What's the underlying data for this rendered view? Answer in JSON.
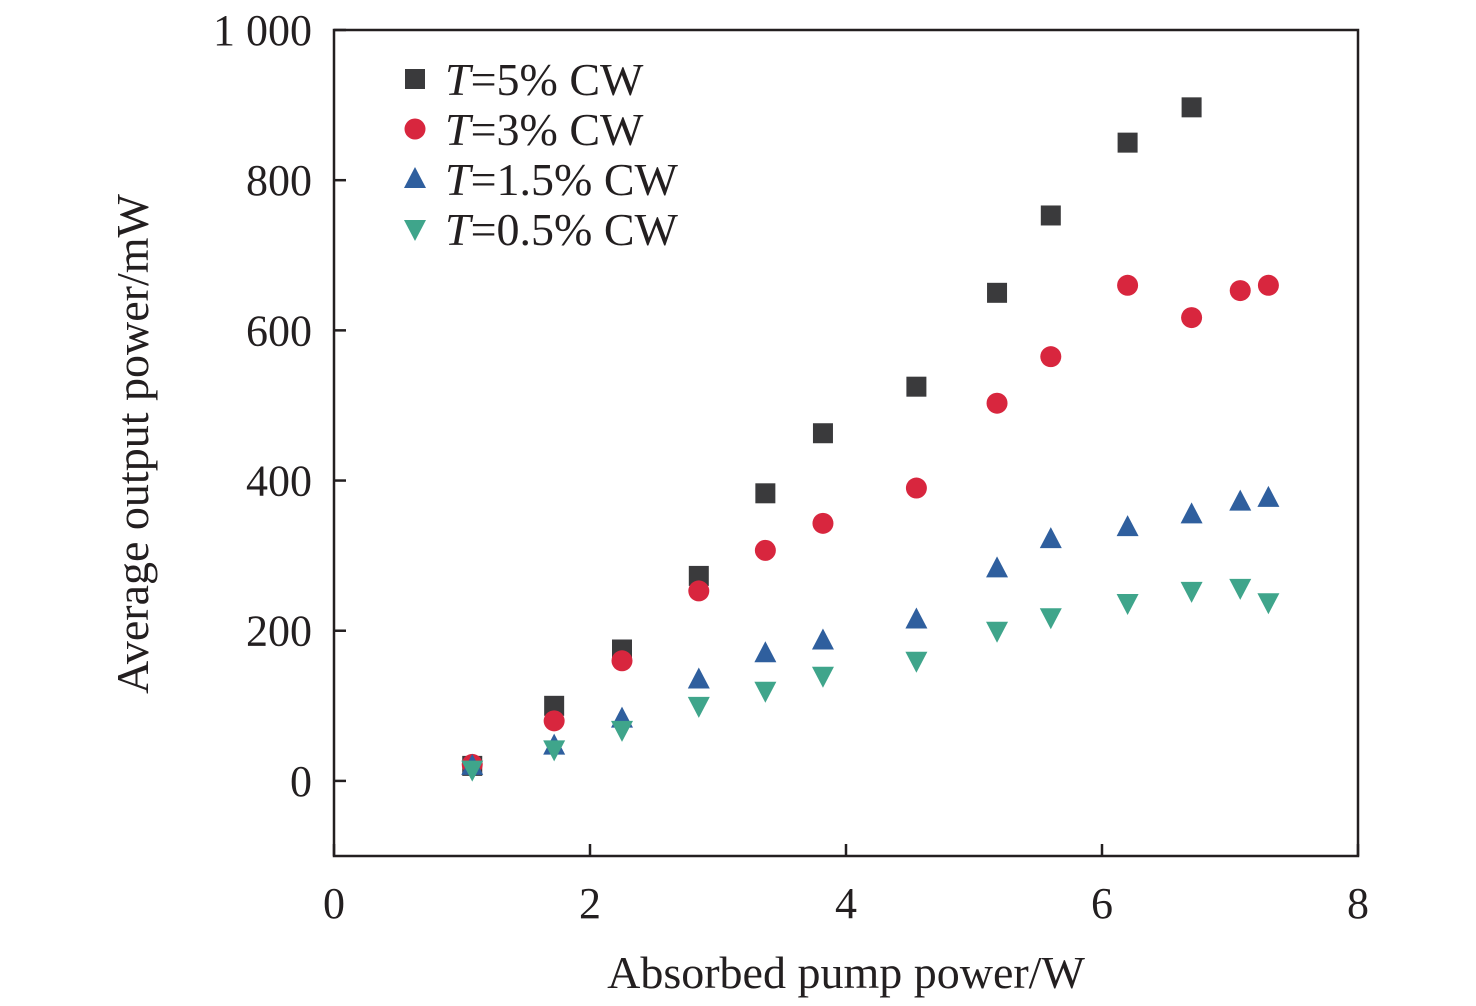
{
  "chart_data": {
    "type": "scatter",
    "title": "",
    "xlabel": "Absorbed pump power/W",
    "ylabel": "Average output power/mW",
    "xlim": [
      0,
      8
    ],
    "ylim": [
      -100,
      1000
    ],
    "x_ticks": [
      0,
      2,
      4,
      6,
      8
    ],
    "x_tick_labels": [
      "0",
      "2",
      "4",
      "6",
      "8"
    ],
    "y_ticks": [
      0,
      200,
      400,
      600,
      800,
      1000
    ],
    "y_tick_labels": [
      "0",
      "200",
      "400",
      "600",
      "800",
      "1 000"
    ],
    "grid": false,
    "legend_position": "top-left",
    "series": [
      {
        "name": "T=5% CW",
        "name_italic_part": "T",
        "name_rest": "=5% CW",
        "marker": "square",
        "color": "#3a3a3c",
        "x": [
          1.08,
          1.72,
          2.25,
          2.85,
          3.37,
          3.82,
          4.55,
          5.18,
          5.6,
          6.2,
          6.7
        ],
        "y": [
          20,
          100,
          175,
          273,
          383,
          463,
          525,
          650,
          753,
          850,
          897
        ]
      },
      {
        "name": "T=3% CW",
        "name_italic_part": "T",
        "name_rest": "=3% CW",
        "marker": "circle",
        "color": "#d8263e",
        "x": [
          1.08,
          1.72,
          2.25,
          2.85,
          3.37,
          3.82,
          4.55,
          5.18,
          5.6,
          6.2,
          6.7,
          7.08,
          7.3
        ],
        "y": [
          22,
          80,
          160,
          253,
          307,
          343,
          390,
          503,
          565,
          660,
          617,
          653,
          660
        ]
      },
      {
        "name": "T=1.5% CW",
        "name_italic_part": "T",
        "name_rest": "=1.5% CW",
        "marker": "triangle-up",
        "color": "#2f5f9e",
        "x": [
          1.08,
          1.72,
          2.25,
          2.85,
          3.37,
          3.82,
          4.55,
          5.18,
          5.6,
          6.2,
          6.7,
          7.08,
          7.3
        ],
        "y": [
          20,
          47,
          83,
          135,
          170,
          187,
          215,
          283,
          322,
          338,
          355,
          372,
          377
        ]
      },
      {
        "name": "T=0.5% CW",
        "name_italic_part": "T",
        "name_rest": "=0.5% CW",
        "marker": "triangle-down",
        "color": "#3fa58b",
        "x": [
          1.08,
          1.72,
          2.25,
          2.85,
          3.37,
          3.82,
          4.55,
          5.18,
          5.6,
          6.2,
          6.7,
          7.08,
          7.3
        ],
        "y": [
          15,
          42,
          68,
          100,
          120,
          140,
          160,
          200,
          218,
          237,
          253,
          257,
          238
        ]
      }
    ]
  }
}
